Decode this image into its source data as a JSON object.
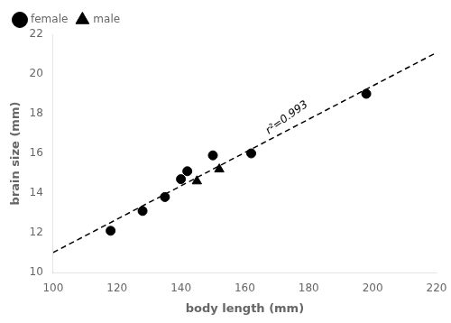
{
  "chart_data": {
    "type": "scatter",
    "xlabel": "body length (mm)",
    "ylabel": "brain size (mm)",
    "series": [
      {
        "type": "line",
        "color": "black",
        "line_style": "dashed",
        "x": [
          100,
          220
        ],
        "values": [
          11.0037,
          21.0793
        ]
      },
      {
        "name": "female",
        "color": "black",
        "marker": "circle",
        "x": [
          118,
          128,
          135,
          140,
          142,
          150,
          162,
          198
        ],
        "values": [
          12.1,
          13.1,
          13.8,
          14.7,
          15.1,
          15.9,
          16.0,
          19.0
        ]
      },
      {
        "name": "male",
        "color": "black",
        "marker": "triangle",
        "x": [
          145,
          152
        ],
        "values": [
          14.6,
          15.2
        ]
      }
    ],
    "annotations": [
      {
        "text": "r²=0.993",
        "x": 168,
        "y": 16.85
      }
    ],
    "xlim": [
      100,
      220
    ],
    "ylim": [
      10,
      22
    ],
    "xticks": [
      100,
      120,
      140,
      160,
      180,
      200,
      220
    ],
    "yticks": [
      10,
      12,
      14,
      16,
      18,
      20,
      22
    ],
    "grid": false,
    "legend": "upper left"
  }
}
